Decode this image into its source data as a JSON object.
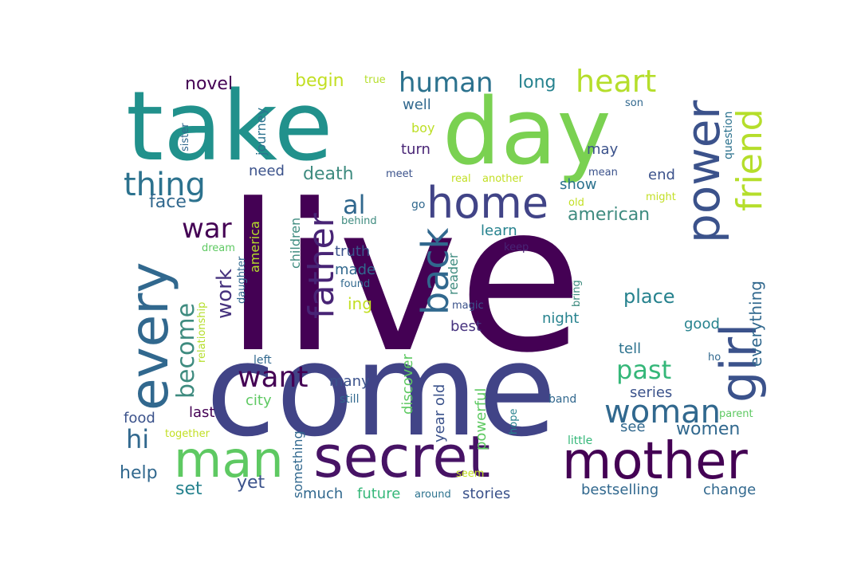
{
  "words": [
    {
      "text": "live",
      "color": "#440154"
    },
    {
      "text": "come",
      "color": "#414487"
    },
    {
      "text": "take",
      "color": "#21918c"
    },
    {
      "text": "day",
      "color": "#7ad151"
    },
    {
      "text": "secret",
      "color": "#471365"
    },
    {
      "text": "mother",
      "color": "#440154"
    },
    {
      "text": "every",
      "color": "#31688e"
    },
    {
      "text": "man",
      "color": "#5ec962"
    },
    {
      "text": "home",
      "color": "#414487"
    },
    {
      "text": "power",
      "color": "#3b528b"
    },
    {
      "text": "girl",
      "color": "#3b528b"
    },
    {
      "text": "father",
      "color": "#482475"
    },
    {
      "text": "back",
      "color": "#31688e"
    },
    {
      "text": "want",
      "color": "#440154"
    },
    {
      "text": "woman",
      "color": "#31688e"
    },
    {
      "text": "friend",
      "color": "#b5de2b"
    },
    {
      "text": "heart",
      "color": "#b5de2b"
    },
    {
      "text": "human",
      "color": "#2c728e"
    },
    {
      "text": "thing",
      "color": "#2c728e"
    },
    {
      "text": "war",
      "color": "#440154"
    },
    {
      "text": "become",
      "color": "#3e8b7f"
    },
    {
      "text": "al",
      "color": "#31688e"
    },
    {
      "text": "past",
      "color": "#35b779"
    },
    {
      "text": "hi",
      "color": "#31688e"
    },
    {
      "text": "work",
      "color": "#46327e"
    },
    {
      "text": "death",
      "color": "#3e8b7f"
    },
    {
      "text": "american",
      "color": "#3e8b7f"
    },
    {
      "text": "place",
      "color": "#26828e"
    },
    {
      "text": "women",
      "color": "#31688e"
    },
    {
      "text": "face",
      "color": "#31688e"
    },
    {
      "text": "novel",
      "color": "#440154"
    },
    {
      "text": "long",
      "color": "#26828e"
    },
    {
      "text": "begin",
      "color": "#c2df23"
    },
    {
      "text": "everything",
      "color": "#31688e"
    },
    {
      "text": "help",
      "color": "#31688e"
    },
    {
      "text": "set",
      "color": "#26828e"
    },
    {
      "text": "yet",
      "color": "#3b528b"
    },
    {
      "text": "city",
      "color": "#5ec962"
    },
    {
      "text": "many",
      "color": "#3b528b"
    },
    {
      "text": "ing",
      "color": "#c2df23"
    },
    {
      "text": "truth",
      "color": "#3b528b"
    },
    {
      "text": "made",
      "color": "#31688e"
    },
    {
      "text": "turn",
      "color": "#482475"
    },
    {
      "text": "well",
      "color": "#31688e"
    },
    {
      "text": "boy",
      "color": "#bddf26"
    },
    {
      "text": "may",
      "color": "#3b528b"
    },
    {
      "text": "end",
      "color": "#3b528b"
    },
    {
      "text": "show",
      "color": "#2c728e"
    },
    {
      "text": "learn",
      "color": "#26828e"
    },
    {
      "text": "night",
      "color": "#26828e"
    },
    {
      "text": "best",
      "color": "#46327e"
    },
    {
      "text": "tell",
      "color": "#2c728e"
    },
    {
      "text": "series",
      "color": "#3b528b"
    },
    {
      "text": "see",
      "color": "#31688e"
    },
    {
      "text": "good",
      "color": "#26828e"
    },
    {
      "text": "food",
      "color": "#3b528b"
    },
    {
      "text": "last",
      "color": "#440154"
    },
    {
      "text": "need",
      "color": "#3b528b"
    },
    {
      "text": "journey",
      "color": "#2c728e"
    },
    {
      "text": "children",
      "color": "#3e8b7f"
    },
    {
      "text": "america",
      "color": "#b5de2b"
    },
    {
      "text": "year old",
      "color": "#3b528b"
    },
    {
      "text": "discover",
      "color": "#5ec962"
    },
    {
      "text": "powerful",
      "color": "#5ec962"
    },
    {
      "text": "something",
      "color": "#31688e"
    },
    {
      "text": "much",
      "color": "#31688e"
    },
    {
      "text": "future",
      "color": "#35b779"
    },
    {
      "text": "stories",
      "color": "#3b528b"
    },
    {
      "text": "bestselling",
      "color": "#31688e"
    },
    {
      "text": "change",
      "color": "#31688e"
    },
    {
      "text": "reader",
      "color": "#3e8b7f"
    },
    {
      "text": "question",
      "color": "#2c728e"
    },
    {
      "text": "sister",
      "color": "#31688e"
    },
    {
      "text": "true",
      "color": "#b5de2b"
    },
    {
      "text": "son",
      "color": "#31688e"
    },
    {
      "text": "meet",
      "color": "#3b528b"
    },
    {
      "text": "real",
      "color": "#c2df23"
    },
    {
      "text": "another",
      "color": "#c2df23"
    },
    {
      "text": "mean",
      "color": "#3b528b"
    },
    {
      "text": "might",
      "color": "#c2df23"
    },
    {
      "text": "old",
      "color": "#c2df23"
    },
    {
      "text": "go",
      "color": "#31688e"
    },
    {
      "text": "behind",
      "color": "#3e8b7f"
    },
    {
      "text": "keep",
      "color": "#482475"
    },
    {
      "text": "found",
      "color": "#31688e"
    },
    {
      "text": "magic",
      "color": "#3b528b"
    },
    {
      "text": "bring",
      "color": "#3e8b7f"
    },
    {
      "text": "dream",
      "color": "#5ec962"
    },
    {
      "text": "daughter",
      "color": "#31688e"
    },
    {
      "text": "relationship",
      "color": "#b5de2b"
    },
    {
      "text": "left",
      "color": "#31688e"
    },
    {
      "text": "ho",
      "color": "#31688e"
    },
    {
      "text": "still",
      "color": "#31688e"
    },
    {
      "text": "band",
      "color": "#31688e"
    },
    {
      "text": "parent",
      "color": "#5ec962"
    },
    {
      "text": "hope",
      "color": "#26828e"
    },
    {
      "text": "little",
      "color": "#35b779"
    },
    {
      "text": "together",
      "color": "#c2df23"
    },
    {
      "text": "seem",
      "color": "#c2df23"
    },
    {
      "text": "around",
      "color": "#2c728e"
    }
  ]
}
